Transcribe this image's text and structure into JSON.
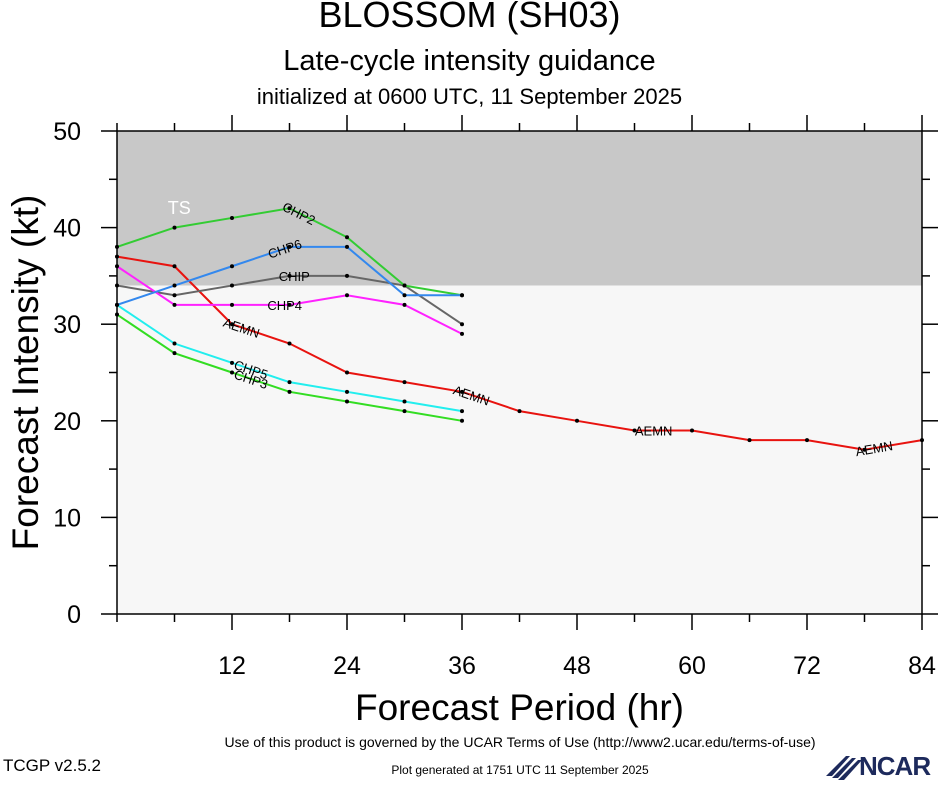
{
  "header": {
    "title": "BLOSSOM (SH03)",
    "subtitle": "Late-cycle intensity guidance",
    "init_line": "initialized at 0600 UTC, 11 September 2025"
  },
  "footer": {
    "terms": "Use of this product is governed by the UCAR Terms of Use (http://www2.ucar.edu/terms-of-use)",
    "generated": "Plot generated at 1751 UTC   11 September 2025",
    "version": "TCGP v2.5.2",
    "logo_text": "NCAR"
  },
  "chart_data": {
    "type": "line",
    "xlabel": "Forecast Period (hr)",
    "ylabel": "Forecast Intensity (kt)",
    "xlim": [
      0,
      84
    ],
    "ylim": [
      0,
      50
    ],
    "xticks": [
      12,
      24,
      36,
      48,
      60,
      72,
      84
    ],
    "yticks": [
      0,
      10,
      20,
      30,
      40,
      50
    ],
    "bands": [
      {
        "label": "TS",
        "from": 34,
        "to": 50,
        "color": "#c8c8c8"
      },
      {
        "label": "",
        "from": 0,
        "to": 34,
        "color": "#f7f7f7"
      }
    ],
    "series": [
      {
        "name": "AEMN",
        "color": "#e8130f",
        "x": [
          0,
          6,
          12,
          18,
          24,
          30,
          36,
          42,
          48,
          54,
          60,
          66,
          72,
          78,
          84
        ],
        "values": [
          37,
          36,
          30,
          28,
          25,
          24,
          23,
          21,
          20,
          19,
          19,
          18,
          18,
          17,
          18
        ],
        "label_at": [
          13,
          37,
          56,
          79
        ]
      },
      {
        "name": "CHIP",
        "color": "#666666",
        "x": [
          0,
          6,
          12,
          18,
          24,
          30,
          36
        ],
        "values": [
          34,
          33,
          34,
          35,
          35,
          34,
          30
        ],
        "label_at": [
          18.5
        ]
      },
      {
        "name": "CHP2",
        "color": "#33cc33",
        "x": [
          0,
          6,
          12,
          18,
          24,
          30,
          36
        ],
        "values": [
          38,
          40,
          41,
          42,
          39,
          34,
          33
        ],
        "label_at": [
          19
        ]
      },
      {
        "name": "CHP3",
        "color": "#33dd22",
        "x": [
          0,
          6,
          12,
          18,
          24,
          30,
          36
        ],
        "values": [
          31,
          27,
          25,
          23,
          22,
          21,
          20
        ],
        "label_at": [
          14
        ]
      },
      {
        "name": "CHP4",
        "color": "#ff22ff",
        "x": [
          0,
          6,
          12,
          18,
          24,
          30,
          36
        ],
        "values": [
          36,
          32,
          32,
          32,
          33,
          32,
          29
        ],
        "label_at": [
          17.5
        ]
      },
      {
        "name": "CHP5",
        "color": "#22eeee",
        "x": [
          0,
          6,
          12,
          18,
          24,
          30,
          36
        ],
        "values": [
          32,
          28,
          26,
          24,
          23,
          22,
          21
        ],
        "label_at": [
          14
        ]
      },
      {
        "name": "CHP6",
        "color": "#3388ee",
        "x": [
          0,
          6,
          12,
          18,
          24,
          30,
          36
        ],
        "values": [
          32,
          34,
          36,
          38,
          38,
          33,
          33
        ],
        "label_at": [
          17.5
        ]
      }
    ]
  }
}
